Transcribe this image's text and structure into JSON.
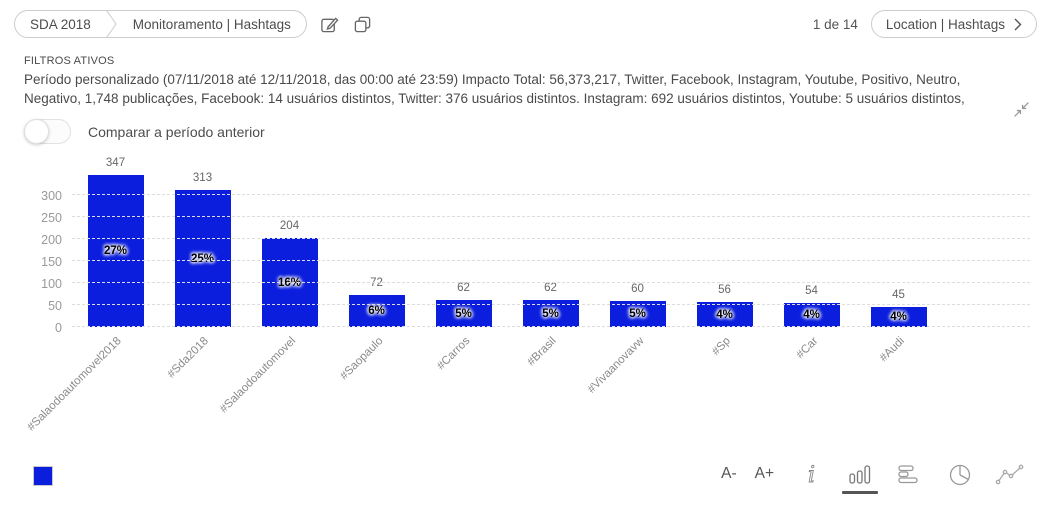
{
  "header": {
    "breadcrumb": {
      "project": "SDA 2018",
      "page": "Monitoramento | Hashtags"
    },
    "pagination": "1 de 14",
    "nav_button": "Location | Hashtags"
  },
  "filters": {
    "title": "FILTROS ATIVOS",
    "description": "Período personalizado (07/11/2018 até 12/11/2018, das 00:00 até 23:59) Impacto Total: 56,373,217, Twitter, Facebook, Instagram, Youtube, Positivo, Neutro, Negativo, 1,748 publicações, Facebook: 14 usuários distintos, Twitter: 376 usuários distintos. Instagram: 692 usuários distintos, Youtube: 5 usuários distintos,"
  },
  "toggle": {
    "label": "Comparar a período anterior",
    "state": "off"
  },
  "chart_data": {
    "type": "bar",
    "categories": [
      "#Salaodoautomovel2018",
      "#Sda2018",
      "#Salaodoautomovel",
      "#Saopaulo",
      "#Carros",
      "#Brasil",
      "#Vivaanovavw",
      "#Sp",
      "#Car",
      "#Audi"
    ],
    "values": [
      347,
      313,
      204,
      72,
      62,
      62,
      60,
      56,
      54,
      45
    ],
    "percent_labels": [
      "27%",
      "25%",
      "16%",
      "6%",
      "5%",
      "5%",
      "5%",
      "4%",
      "4%",
      "4%"
    ],
    "y_ticks": [
      0,
      50,
      100,
      150,
      200,
      250,
      300
    ],
    "ylim": [
      0,
      358
    ],
    "title": "",
    "xlabel": "",
    "ylabel": "",
    "grid": "dashed-horizontal",
    "legend_position": "bottom-left",
    "bar_color": "#0b1edd"
  },
  "footer": {
    "font_decrease": "A-",
    "font_increase": "A+",
    "chart_type_icons": [
      "info",
      "bar-vertical",
      "bar-horizontal",
      "pie",
      "line"
    ],
    "active_chart_type": "bar-vertical"
  },
  "colors": {
    "bar": "#0b1edd",
    "grid": "#dddddd",
    "axis_text": "#999999",
    "body_text": "#4a4a4a"
  }
}
